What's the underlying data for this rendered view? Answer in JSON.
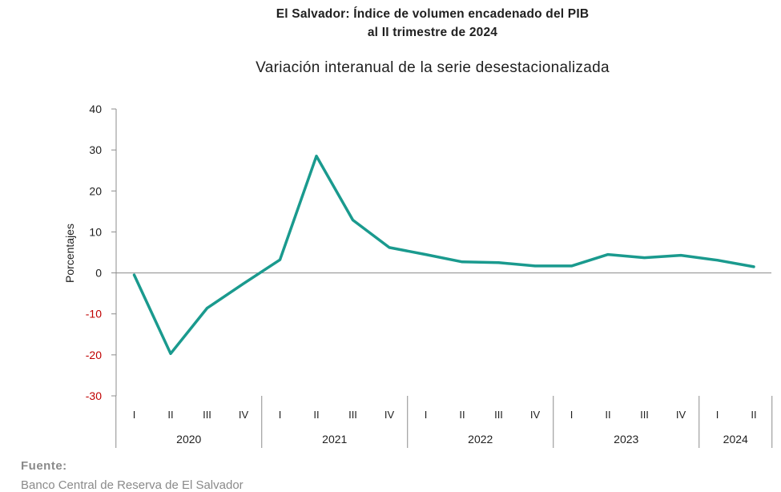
{
  "chart_data": {
    "type": "line",
    "title_line1": "El Salvador: Índice de volumen encadenado del PIB",
    "title_line2": "al II trimestre de 2024",
    "subtitle": "Variación interanual de la serie desestacionalizada",
    "ylabel": "Porcentajes",
    "ylim": [
      -30,
      40
    ],
    "yticks": [
      40,
      30,
      20,
      10,
      0,
      -10,
      -20,
      -30
    ],
    "negative_tick_color": "#c00000",
    "line_color": "#1a9a8e",
    "quarters": [
      "I",
      "II",
      "III",
      "IV",
      "I",
      "II",
      "III",
      "IV",
      "I",
      "II",
      "III",
      "IV",
      "I",
      "II",
      "III",
      "IV",
      "I",
      "II"
    ],
    "years": [
      {
        "label": "2020",
        "quarters": 4
      },
      {
        "label": "2021",
        "quarters": 4
      },
      {
        "label": "2022",
        "quarters": 4
      },
      {
        "label": "2023",
        "quarters": 4
      },
      {
        "label": "2024",
        "quarters": 2
      }
    ],
    "series": [
      {
        "values": [
          -0.5,
          -19.7,
          -8.6,
          -2.6,
          3.2,
          28.5,
          12.9,
          6.2,
          4.5,
          2.7,
          2.5,
          1.7,
          1.7,
          4.5,
          3.7,
          4.3,
          3.1,
          1.5
        ]
      }
    ]
  },
  "source": {
    "label": "Fuente:",
    "text": "Banco Central de Reserva de El Salvador"
  }
}
